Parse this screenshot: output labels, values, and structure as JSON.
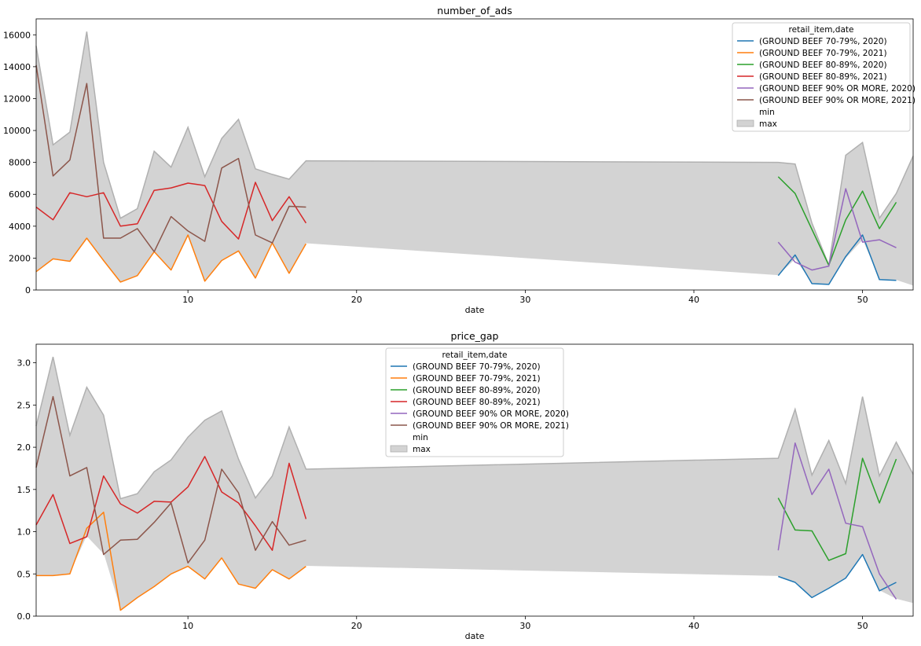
{
  "chart_data": [
    {
      "type": "line",
      "title": "number_of_ads",
      "xlabel": "date",
      "ylabel": "",
      "xlim": [
        1,
        53
      ],
      "ylim": [
        0,
        17000
      ],
      "xticks": [
        10,
        20,
        30,
        40,
        50
      ],
      "yticks": [
        0,
        2000,
        4000,
        6000,
        8000,
        10000,
        12000,
        14000,
        16000
      ],
      "grid": false,
      "legend_position": "top-right",
      "legend_title": "retail_item,date",
      "band": {
        "min_label": "min",
        "max_label": "max",
        "color": "#d3d3d3",
        "edge_color": "#b0b0b0",
        "x": [
          1,
          2,
          3,
          4,
          5,
          6,
          7,
          8,
          9,
          10,
          11,
          12,
          13,
          14,
          15,
          16,
          17,
          45,
          46,
          47,
          48,
          49,
          50,
          51,
          52,
          53
        ],
        "lower": [
          1150,
          1950,
          1800,
          3250,
          1850,
          500,
          900,
          2400,
          1250,
          3400,
          500,
          1850,
          2450,
          750,
          2950,
          1050,
          2900,
          900,
          1900,
          400,
          350,
          1950,
          3100,
          650,
          600,
          250
        ],
        "upper": [
          15300,
          9100,
          9900,
          16200,
          8000,
          4500,
          5100,
          8700,
          7700,
          10200,
          7100,
          9500,
          10700,
          7600,
          7250,
          6950,
          8100,
          8000,
          7900,
          4200,
          1550,
          8450,
          9250,
          4500,
          6050,
          8400
        ]
      },
      "series": [
        {
          "name": "(GROUND BEEF 70-79%, 2020)",
          "color": "#1f77b4",
          "x": [
            45,
            46,
            47,
            48,
            49,
            50,
            51,
            52
          ],
          "values": [
            900,
            2200,
            400,
            350,
            2100,
            3450,
            650,
            600
          ]
        },
        {
          "name": "(GROUND BEEF 70-79%, 2021)",
          "color": "#ff7f0e",
          "x": [
            1,
            2,
            3,
            4,
            5,
            6,
            7,
            8,
            9,
            10,
            11,
            12,
            13,
            14,
            15,
            16,
            17
          ],
          "values": [
            1150,
            1950,
            1800,
            3250,
            1850,
            500,
            900,
            2400,
            1250,
            3450,
            550,
            1850,
            2450,
            750,
            2950,
            1050,
            2900
          ]
        },
        {
          "name": "(GROUND BEEF 80-89%, 2020)",
          "color": "#2ca02c",
          "x": [
            45,
            46,
            47,
            48,
            49,
            50,
            51,
            52
          ],
          "values": [
            7100,
            6050,
            3800,
            1550,
            4400,
            6200,
            3850,
            5500
          ]
        },
        {
          "name": "(GROUND BEEF 80-89%, 2021)",
          "color": "#d62728",
          "x": [
            1,
            2,
            3,
            4,
            5,
            6,
            7,
            8,
            9,
            10,
            11,
            12,
            13,
            14,
            15,
            16,
            17
          ],
          "values": [
            5200,
            4400,
            6100,
            5850,
            6100,
            4000,
            4150,
            6250,
            6400,
            6700,
            6550,
            4300,
            3200,
            6750,
            4350,
            5850,
            4200
          ]
        },
        {
          "name": "(GROUND BEEF 90% OR MORE, 2020)",
          "color": "#9467bd",
          "x": [
            45,
            46,
            47,
            48,
            49,
            50,
            51,
            52
          ],
          "values": [
            3000,
            1750,
            1250,
            1500,
            6350,
            3000,
            3150,
            2650
          ]
        },
        {
          "name": "(GROUND BEEF 90% OR MORE, 2021)",
          "color": "#8c564b",
          "x": [
            1,
            2,
            3,
            4,
            5,
            6,
            7,
            8,
            9,
            10,
            11,
            12,
            13,
            14,
            15,
            16,
            17
          ],
          "values": [
            14100,
            7150,
            8150,
            12950,
            3250,
            3250,
            3850,
            2400,
            4600,
            3700,
            3050,
            7650,
            8250,
            3450,
            2950,
            5250,
            5200
          ]
        }
      ]
    },
    {
      "type": "line",
      "title": "price_gap",
      "xlabel": "date",
      "ylabel": "",
      "xlim": [
        1,
        53
      ],
      "ylim": [
        0,
        3.22
      ],
      "xticks": [
        10,
        20,
        30,
        40,
        50
      ],
      "yticks": [
        "0.0",
        "0.5",
        "1.0",
        "1.5",
        "2.0",
        "2.5",
        "3.0"
      ],
      "grid": false,
      "legend_position": "upper-center",
      "legend_title": "retail_item,date",
      "band": {
        "min_label": "min",
        "max_label": "max",
        "color": "#d3d3d3",
        "edge_color": "#b0b0b0",
        "x": [
          1,
          2,
          3,
          4,
          5,
          6,
          7,
          8,
          9,
          10,
          11,
          12,
          13,
          14,
          15,
          16,
          17,
          45,
          46,
          47,
          48,
          49,
          50,
          51,
          52,
          53
        ],
        "lower": [
          0.48,
          0.48,
          0.5,
          0.94,
          0.73,
          0.07,
          0.22,
          0.35,
          0.5,
          0.59,
          0.44,
          0.69,
          0.38,
          0.33,
          0.55,
          0.44,
          0.59,
          0.47,
          0.4,
          0.22,
          0.33,
          0.45,
          0.73,
          0.3,
          0.2,
          0.15
        ],
        "upper": [
          2.25,
          3.07,
          2.14,
          2.71,
          2.38,
          1.39,
          1.45,
          1.71,
          1.85,
          2.12,
          2.32,
          2.43,
          1.86,
          1.4,
          1.66,
          2.24,
          1.74,
          1.87,
          2.45,
          1.67,
          2.08,
          1.57,
          2.6,
          1.66,
          2.06,
          1.68
        ]
      },
      "series": [
        {
          "name": "(GROUND BEEF 70-79%, 2020)",
          "color": "#1f77b4",
          "x": [
            45,
            46,
            47,
            48,
            49,
            50,
            51,
            52
          ],
          "values": [
            0.47,
            0.4,
            0.22,
            0.33,
            0.45,
            0.73,
            0.3,
            0.4
          ]
        },
        {
          "name": "(GROUND BEEF 70-79%, 2021)",
          "color": "#ff7f0e",
          "x": [
            1,
            2,
            3,
            4,
            5,
            6,
            7,
            8,
            9,
            10,
            11,
            12,
            13,
            14,
            15,
            16,
            17
          ],
          "values": [
            0.48,
            0.48,
            0.5,
            1.04,
            1.23,
            0.07,
            0.22,
            0.35,
            0.5,
            0.59,
            0.44,
            0.69,
            0.38,
            0.33,
            0.55,
            0.44,
            0.59
          ]
        },
        {
          "name": "(GROUND BEEF 80-89%, 2020)",
          "color": "#2ca02c",
          "x": [
            45,
            46,
            47,
            48,
            49,
            50,
            51,
            52
          ],
          "values": [
            1.4,
            1.02,
            1.01,
            0.66,
            0.74,
            1.87,
            1.34,
            1.86
          ]
        },
        {
          "name": "(GROUND BEEF 80-89%, 2021)",
          "color": "#d62728",
          "x": [
            1,
            2,
            3,
            4,
            5,
            6,
            7,
            8,
            9,
            10,
            11,
            12,
            13,
            14,
            15,
            16,
            17
          ],
          "values": [
            1.08,
            1.44,
            0.86,
            0.94,
            1.66,
            1.33,
            1.22,
            1.36,
            1.35,
            1.53,
            1.89,
            1.47,
            1.34,
            1.07,
            0.78,
            1.81,
            1.15
          ]
        },
        {
          "name": "(GROUND BEEF 90% OR MORE, 2020)",
          "color": "#9467bd",
          "x": [
            45,
            46,
            47,
            48,
            49,
            50,
            51,
            52
          ],
          "values": [
            0.78,
            2.05,
            1.44,
            1.74,
            1.1,
            1.06,
            0.5,
            0.2
          ]
        },
        {
          "name": "(GROUND BEEF 90% OR MORE, 2021)",
          "color": "#8c564b",
          "x": [
            1,
            2,
            3,
            4,
            5,
            6,
            7,
            8,
            9,
            10,
            11,
            12,
            13,
            14,
            15,
            16,
            17
          ],
          "values": [
            1.76,
            2.6,
            1.66,
            1.76,
            0.73,
            0.9,
            0.91,
            1.11,
            1.34,
            0.63,
            0.9,
            1.74,
            1.46,
            0.78,
            1.12,
            0.84,
            0.9
          ]
        }
      ]
    }
  ]
}
